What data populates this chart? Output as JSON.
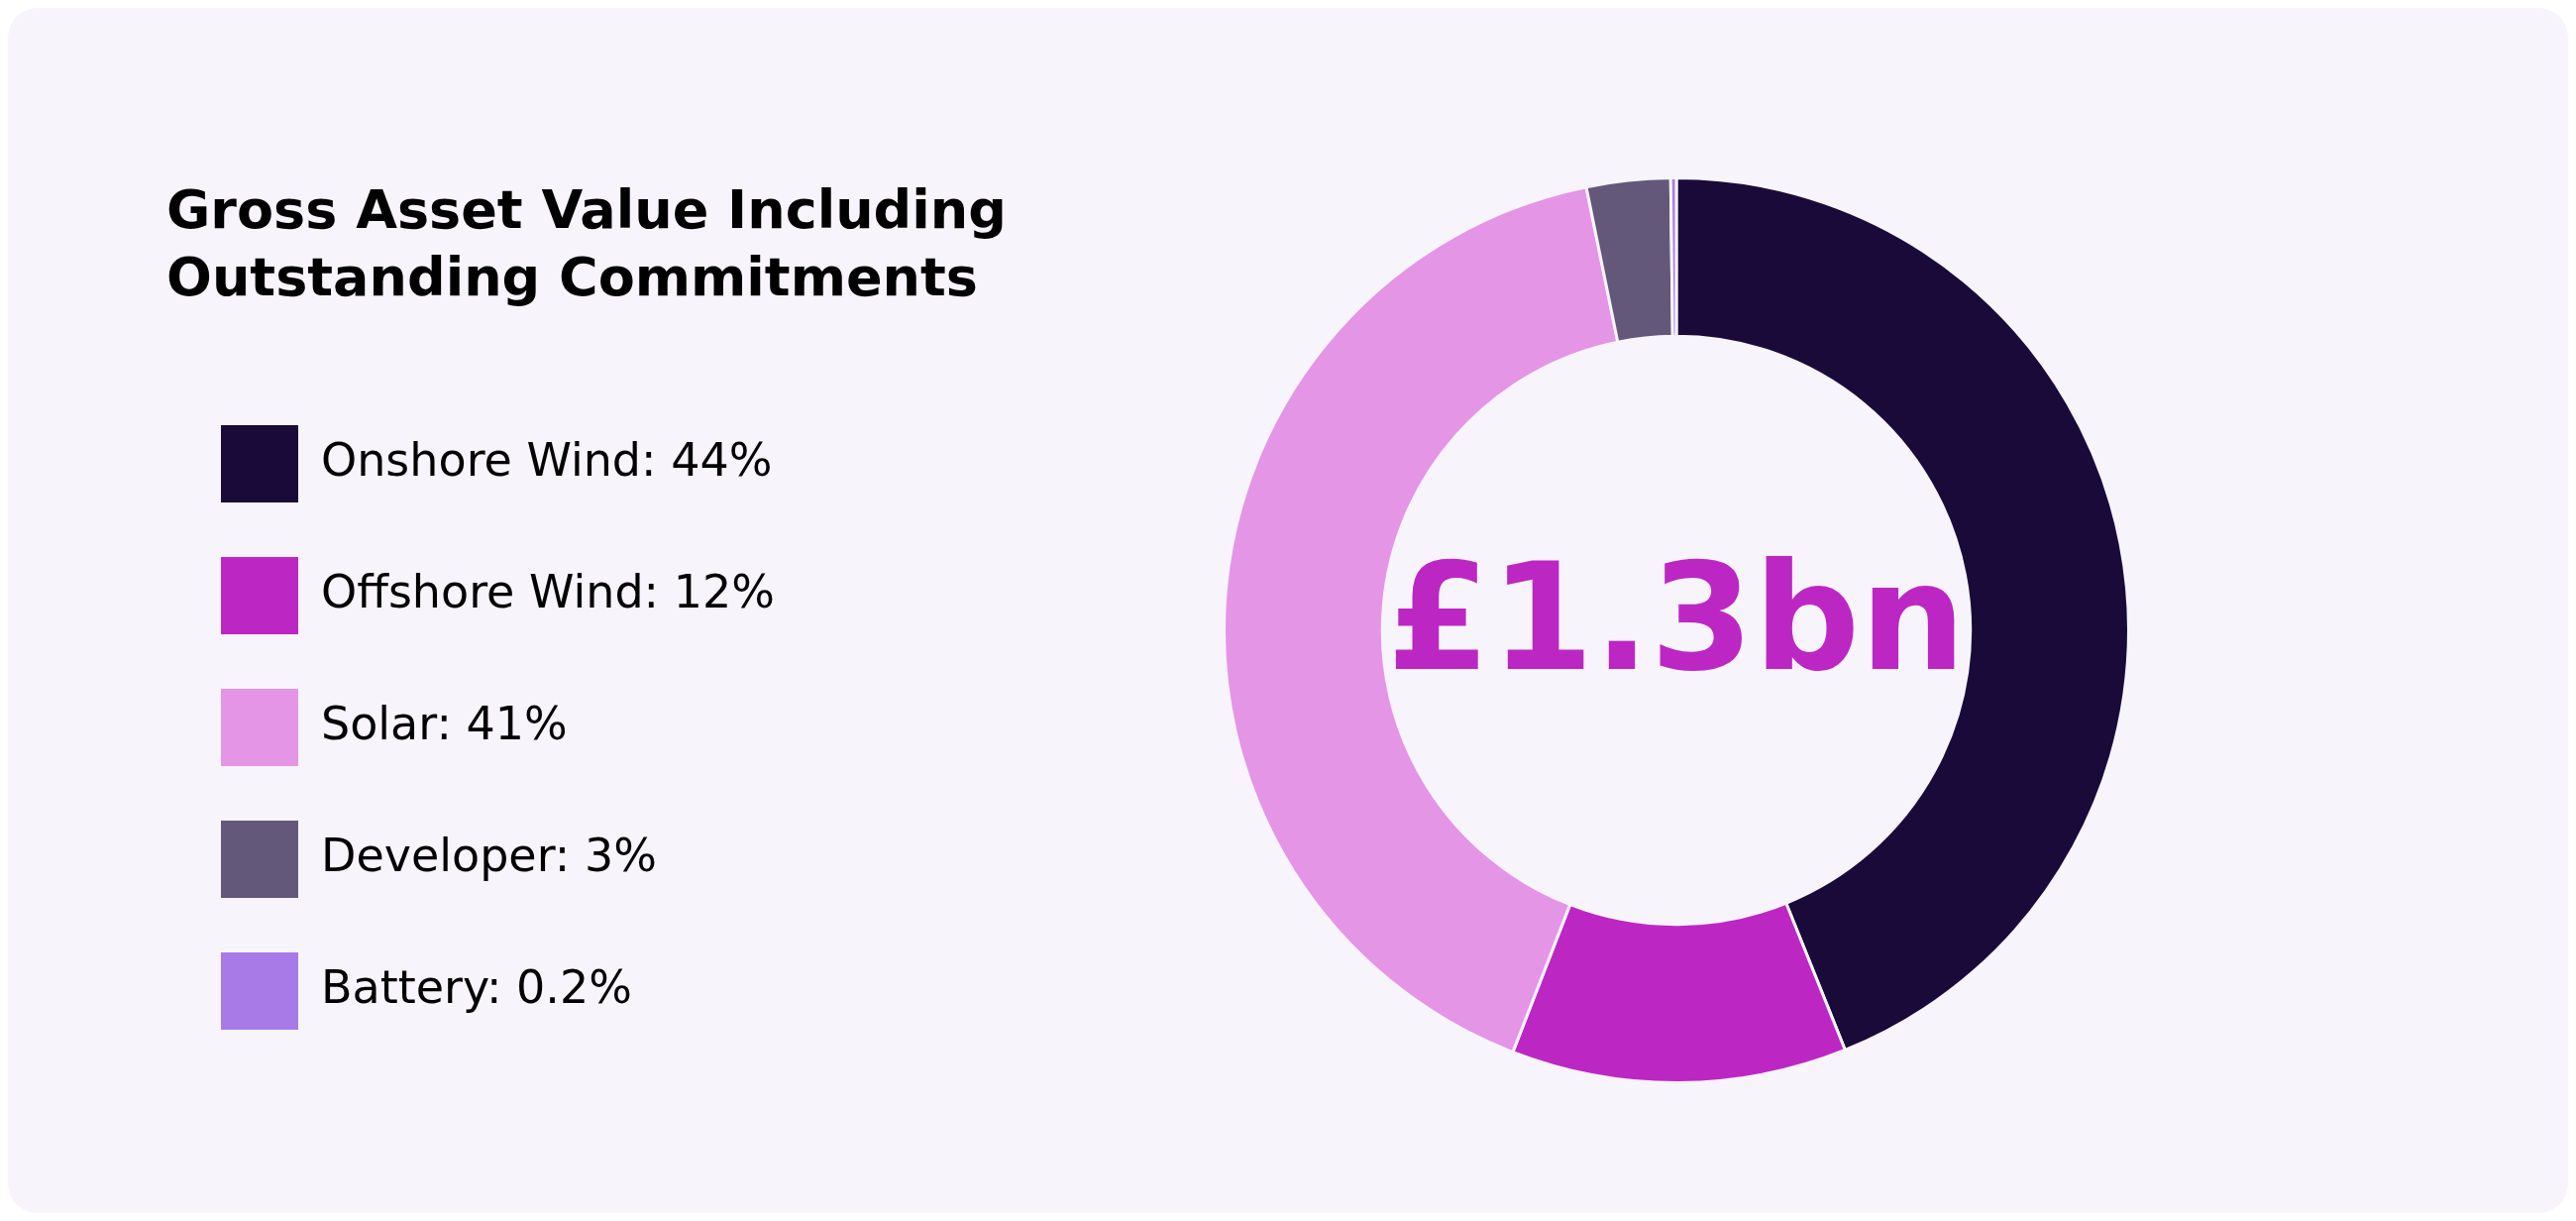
{
  "chart_data": {
    "type": "donut",
    "title": "Gross Asset Value Including Outstanding Commitments",
    "categories": [
      "Onshore Wind",
      "Offshore Wind",
      "Solar",
      "Developer",
      "Battery"
    ],
    "values": [
      44,
      12,
      41,
      3,
      0.2
    ],
    "value_labels": [
      "44%",
      "12%",
      "41%",
      "3%",
      "0.2%"
    ],
    "colors": [
      "#1a0a3a",
      "#bc27c4",
      "#e495e6",
      "#64587a",
      "#a87ae8"
    ],
    "annotations": [
      "£1.3bn"
    ],
    "legend": "left"
  }
}
